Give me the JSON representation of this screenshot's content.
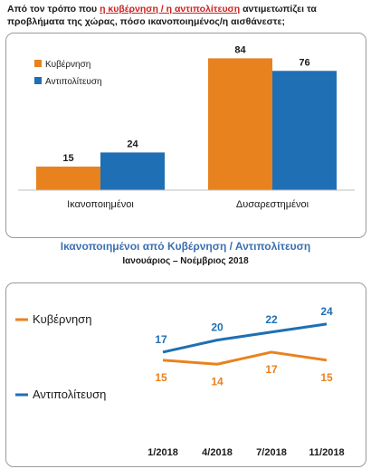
{
  "question": {
    "before": "Από τον τρόπο που ",
    "highlight": "η κυβέρνηση / η αντιπολίτευση",
    "after": " αντιμετωπίζει τα προβλήματα της χώρας, πόσο ικανοποιημένος/η αισθάνεστε;"
  },
  "colors": {
    "government": "#e8821e",
    "opposition": "#1f6fb5"
  },
  "chart_data": [
    {
      "type": "bar",
      "title": "",
      "categories": [
        "Ικανοποιημένοι",
        "Δυσαρεστημένοι"
      ],
      "series": [
        {
          "name": "Κυβέρνηση",
          "values": [
            15,
            84
          ]
        },
        {
          "name": "Αντιπολίτευση",
          "values": [
            24,
            76
          ]
        }
      ],
      "ylim": [
        0,
        90
      ],
      "legend": "top-left",
      "grid": false
    },
    {
      "type": "line",
      "title": "Ικανοποιημένοι από Κυβέρνηση / Αντιπολίτευση",
      "subtitle": "Ιανουάριος – Νοέμβριος 2018",
      "x": [
        "1/2018",
        "4/2018",
        "7/2018",
        "11/2018"
      ],
      "series": [
        {
          "name": "Κυβέρνηση",
          "values": [
            15,
            14,
            17,
            15
          ]
        },
        {
          "name": "Αντιπολίτευση",
          "values": [
            17,
            20,
            22,
            24
          ]
        }
      ],
      "ylim": [
        10,
        26
      ],
      "legend": "left",
      "grid": false
    }
  ]
}
